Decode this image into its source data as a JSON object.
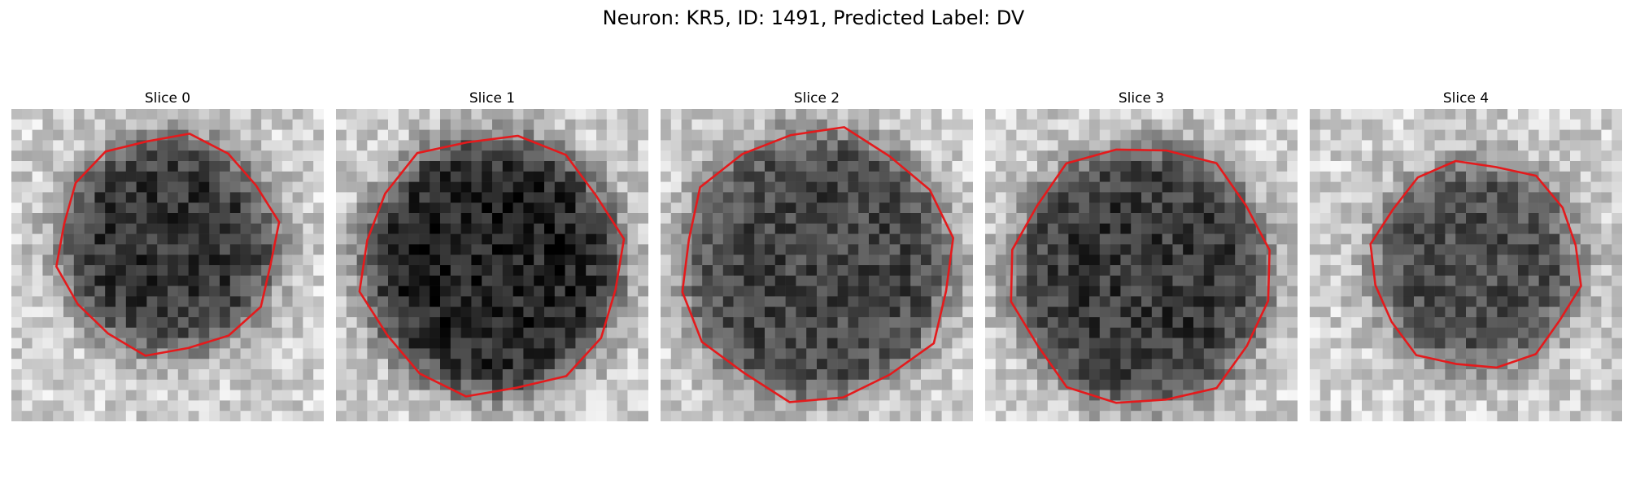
{
  "figure": {
    "title": "Neuron: KR5, ID: 1491, Predicted Label: DV"
  },
  "grid_size": 30,
  "contour_color": "#e41a1c",
  "panels": [
    {
      "title": "Slice 0",
      "seed": 11,
      "center": [
        15,
        13
      ],
      "radius": 10.5,
      "contrast": 0.62
    },
    {
      "title": "Slice 1",
      "seed": 23,
      "center": [
        15,
        15
      ],
      "radius": 12.5,
      "contrast": 0.68
    },
    {
      "title": "Slice 2",
      "seed": 37,
      "center": [
        15,
        15
      ],
      "radius": 13.0,
      "contrast": 0.55
    },
    {
      "title": "Slice 3",
      "seed": 41,
      "center": [
        15,
        16
      ],
      "radius": 12.5,
      "contrast": 0.6
    },
    {
      "title": "Slice 4",
      "seed": 59,
      "center": [
        16,
        15
      ],
      "radius": 10.0,
      "contrast": 0.52
    }
  ]
}
